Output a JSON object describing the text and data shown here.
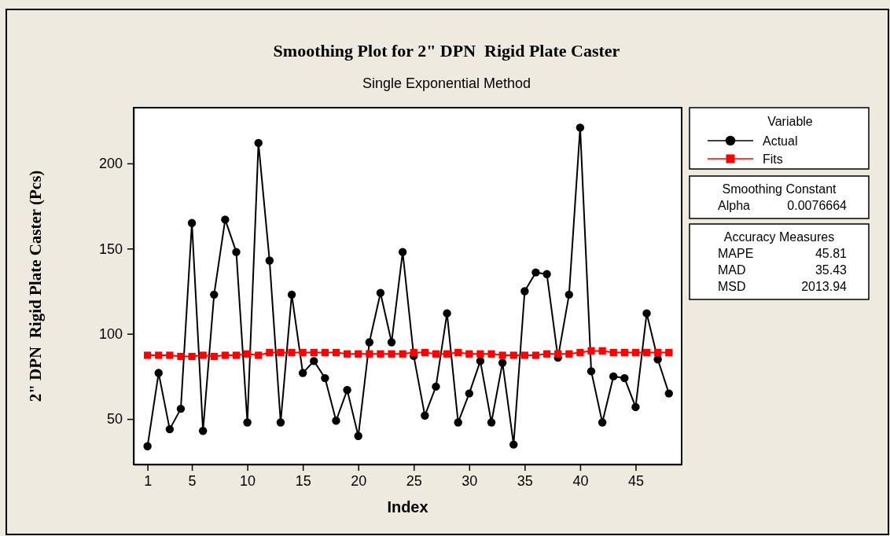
{
  "chart_data": {
    "type": "line",
    "title": "Smoothing Plot for 2\" DPN  Rigid Plate Caster",
    "subtitle": "Single Exponential Method",
    "xlabel": "Index",
    "ylabel": "2\" DPN  Rigid Plate Caster (Pcs)",
    "legend_title": "Variable",
    "x": [
      1,
      2,
      3,
      4,
      5,
      6,
      7,
      8,
      9,
      10,
      11,
      12,
      13,
      14,
      15,
      16,
      17,
      18,
      19,
      20,
      21,
      22,
      23,
      24,
      25,
      26,
      27,
      28,
      29,
      30,
      31,
      32,
      33,
      34,
      35,
      36,
      37,
      38,
      39,
      40,
      41,
      42,
      43,
      44,
      45,
      46,
      47,
      48
    ],
    "series": [
      {
        "name": "Actual",
        "color": "#000000",
        "marker": "circle",
        "values": [
          34,
          77,
          44,
          56,
          165,
          43,
          123,
          167,
          148,
          48,
          212,
          143,
          48,
          123,
          77,
          84,
          74,
          49,
          67,
          40,
          95,
          124,
          95,
          148,
          87,
          52,
          69,
          112,
          48,
          65,
          84,
          48,
          83,
          35,
          125,
          136,
          135,
          86,
          123,
          221,
          78,
          48,
          75,
          74,
          57,
          112,
          85,
          65
        ]
      },
      {
        "name": "Fits",
        "color": "#ff0000",
        "marker": "square",
        "values": [
          87.4,
          87.4,
          87.4,
          86.7,
          86.7,
          87.4,
          86.7,
          87.4,
          87.4,
          88.2,
          87.4,
          89,
          89,
          89,
          89,
          89,
          89,
          89,
          88.2,
          88.2,
          88.2,
          88.2,
          88.2,
          88.2,
          89,
          89,
          88.2,
          88.2,
          89,
          88.2,
          88.2,
          88.2,
          87.4,
          87.4,
          87.4,
          87.4,
          88.2,
          88.2,
          88.2,
          89,
          90,
          90,
          89,
          89,
          89,
          89,
          89,
          89
        ]
      }
    ],
    "xlim": [
      -0.25,
      49.15
    ],
    "ylim": [
      23.3,
      232.7
    ],
    "xticks": [
      1,
      5,
      10,
      15,
      20,
      25,
      30,
      35,
      40,
      45
    ],
    "yticks": [
      50,
      100,
      150,
      200
    ],
    "grid": false,
    "legend": "right",
    "annotations": [
      "Smoothing Constant",
      "Alpha 0.0076664",
      "Accuracy Measures",
      "MAPE 45.81",
      "MAD 35.43",
      "MSD 2013.94"
    ]
  }
}
